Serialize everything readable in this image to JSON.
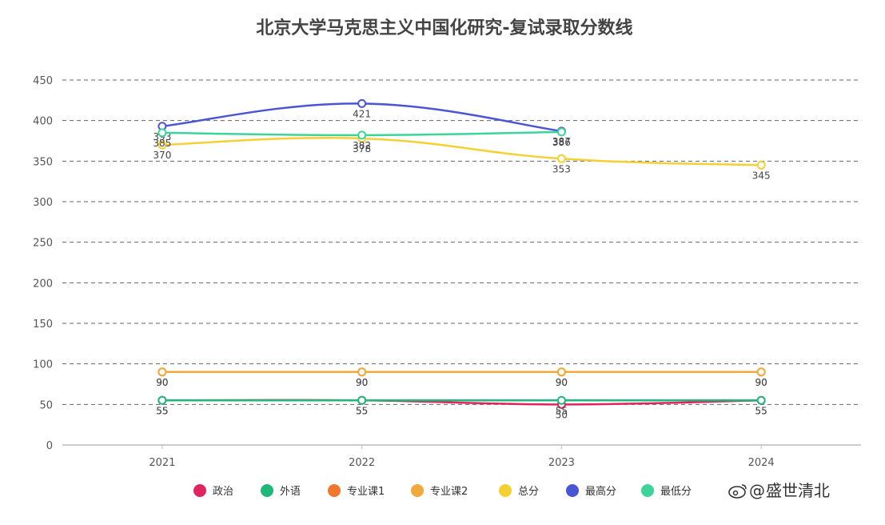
{
  "chart_data": {
    "type": "line",
    "title": "北京大学马克思主义中国化研究-复试录取分数线",
    "categories": [
      "2021",
      "2022",
      "2023",
      "2024"
    ],
    "ylim": [
      0,
      450
    ],
    "yticks": [
      0,
      50,
      100,
      150,
      200,
      250,
      300,
      350,
      400,
      450
    ],
    "grid": true,
    "legend_position": "bottom",
    "series": [
      {
        "name": "政治",
        "color": "#e0245e",
        "values": [
          55,
          55,
          50,
          55
        ]
      },
      {
        "name": "外语",
        "color": "#1fb87a",
        "values": [
          55,
          55,
          55,
          55
        ]
      },
      {
        "name": "专业课1",
        "color": "#f0782d",
        "values": [
          90,
          90,
          90,
          90
        ]
      },
      {
        "name": "专业课2",
        "color": "#f0a93a",
        "values": [
          90,
          90,
          90,
          90
        ]
      },
      {
        "name": "总分",
        "color": "#f5d033",
        "values": [
          370,
          378,
          353,
          345
        ]
      },
      {
        "name": "最高分",
        "color": "#4a55d6",
        "values": [
          393,
          421,
          387,
          null
        ]
      },
      {
        "name": "最低分",
        "color": "#3dd49a",
        "values": [
          385,
          382,
          386,
          null
        ]
      }
    ]
  },
  "watermark": "盛世清北"
}
